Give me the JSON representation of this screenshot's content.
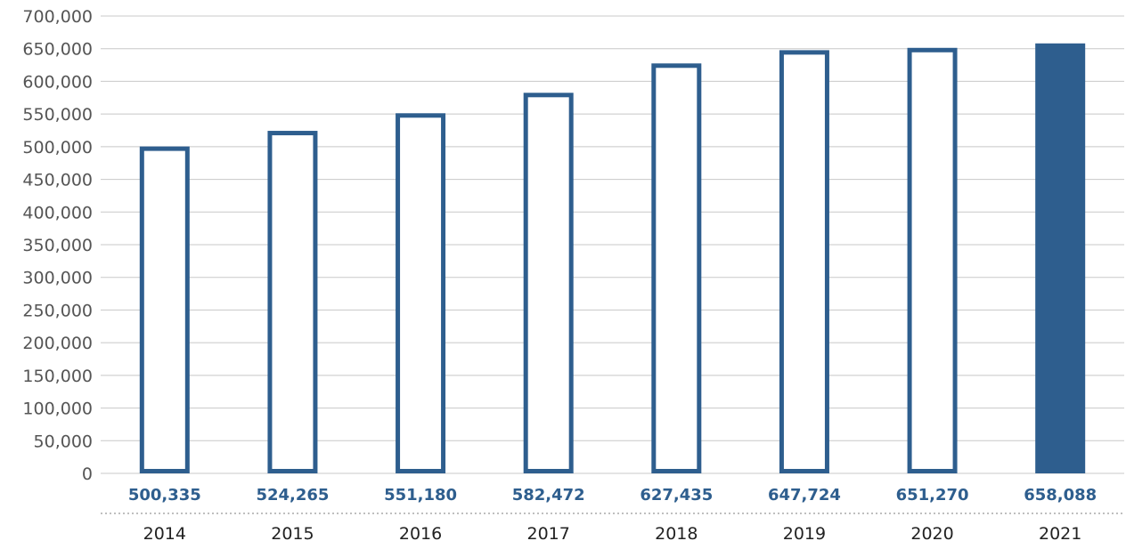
{
  "chart_data": {
    "type": "bar",
    "title": "",
    "xlabel": "",
    "ylabel": "",
    "categories": [
      "2014",
      "2015",
      "2016",
      "2017",
      "2018",
      "2019",
      "2020",
      "2021"
    ],
    "values": [
      500335,
      524265,
      551180,
      582472,
      627435,
      647724,
      651270,
      658088
    ],
    "value_labels": [
      "500,335",
      "524,265",
      "551,180",
      "582,472",
      "627,435",
      "647,724",
      "651,270",
      "658,088"
    ],
    "ylim": [
      0,
      700000
    ],
    "yticks": [
      0,
      50000,
      100000,
      150000,
      200000,
      250000,
      300000,
      350000,
      400000,
      450000,
      500000,
      550000,
      600000,
      650000,
      700000
    ],
    "ytick_labels": [
      "0",
      "50,000",
      "100,000",
      "150,000",
      "200,000",
      "250,000",
      "300,000",
      "350,000",
      "400,000",
      "450,000",
      "500,000",
      "550,000",
      "600,000",
      "650,000",
      "700,000"
    ],
    "grid": true,
    "legend": "none",
    "bar_style": [
      "outline",
      "outline",
      "outline",
      "outline",
      "outline",
      "outline",
      "outline",
      "filled"
    ],
    "colors": {
      "bar": "#2e5e8e",
      "grid": "#c8c8c8",
      "value_label": "#2e5e8e"
    }
  }
}
